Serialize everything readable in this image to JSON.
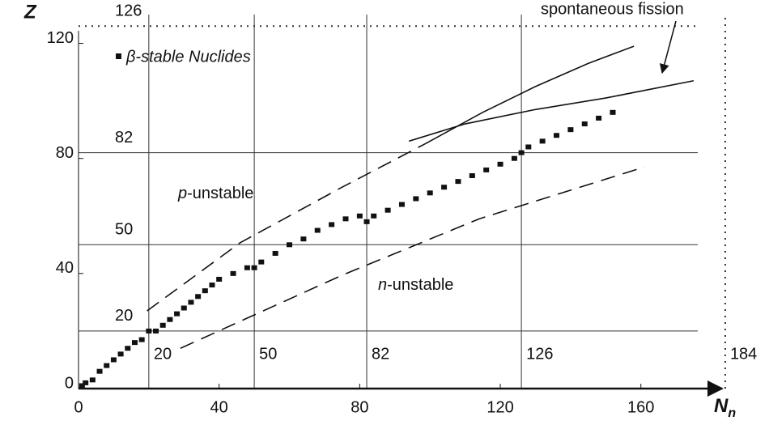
{
  "chart_data": {
    "type": "scatter",
    "x_label": "N",
    "x_label_sub": "n",
    "y_label": "Z",
    "xlim": [
      0,
      190
    ],
    "ylim": [
      0,
      130
    ],
    "xticks": [
      0,
      40,
      80,
      120,
      160
    ],
    "yticks": [
      0,
      40,
      80,
      120
    ],
    "magic_n": [
      20,
      50,
      82,
      126,
      184
    ],
    "magic_n_styles": [
      "solid",
      "solid",
      "solid",
      "solid",
      "dotted"
    ],
    "magic_z": [
      20,
      50,
      82,
      126
    ],
    "magic_z_styles": [
      "solid",
      "solid",
      "solid",
      "dotted"
    ],
    "series": [
      {
        "name": "β-stable Nuclides",
        "color": "#111111",
        "x": [
          1,
          2,
          4,
          6,
          8,
          10,
          12,
          14,
          16,
          18,
          20,
          22,
          24,
          26,
          28,
          30,
          32,
          34,
          36,
          38,
          40,
          44,
          48,
          50,
          52,
          56,
          60,
          64,
          68,
          72,
          76,
          80,
          82,
          84,
          88,
          92,
          96,
          100,
          104,
          108,
          112,
          116,
          120,
          124,
          126,
          128,
          132,
          136,
          140,
          144,
          148,
          152
        ],
        "values": [
          1,
          2,
          3,
          6,
          8,
          10,
          12,
          14,
          16,
          17,
          20,
          20,
          22,
          24,
          26,
          28,
          30,
          32,
          34,
          36,
          38,
          40,
          42,
          42,
          44,
          47,
          50,
          52,
          55,
          57,
          59,
          60,
          58,
          60,
          62,
          64,
          66,
          68,
          70,
          72,
          74,
          76,
          78,
          80,
          82,
          84,
          86,
          88,
          90,
          92,
          94,
          96
        ]
      }
    ],
    "curves": [
      {
        "color": "#111111",
        "style": "dashed",
        "x": [
          19.5,
          46,
          75,
          98.5
        ],
        "values": [
          27,
          50.7,
          70,
          85
        ]
      },
      {
        "color": "#111111",
        "style": "dashed",
        "x": [
          29,
          75,
          114,
          161
        ],
        "values": [
          14,
          39.4,
          59,
          77
        ]
      },
      {
        "color": "#111111",
        "style": "solid",
        "x": [
          98.5,
          115,
          130,
          145,
          158
        ],
        "values": [
          85,
          96,
          105,
          113,
          119
        ]
      },
      {
        "color": "#111111",
        "style": "solid",
        "x": [
          94,
          110,
          130,
          150,
          175
        ],
        "values": [
          86,
          92,
          97,
          101,
          107
        ]
      }
    ],
    "annotations": {
      "p_unstable": [
        "p",
        "-unstable"
      ],
      "n_unstable": [
        "n",
        "-unstable"
      ],
      "fission": "spontaneous fission"
    }
  }
}
